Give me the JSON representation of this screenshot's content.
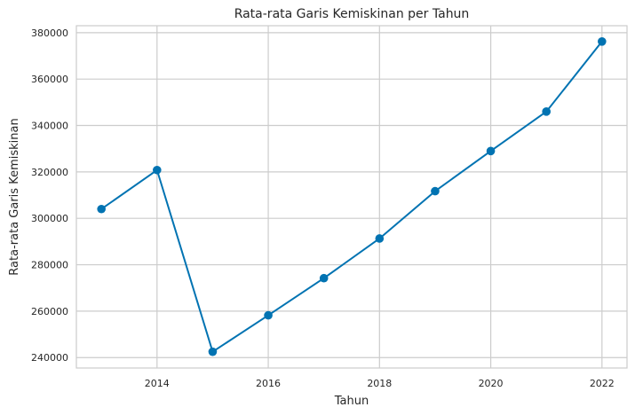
{
  "chart_data": {
    "type": "line",
    "title": "Rata-rata Garis Kemiskinan per Tahun",
    "xlabel": "Tahun",
    "ylabel": "Rata-rata Garis Kemiskinan",
    "x": [
      2013,
      2014,
      2015,
      2016,
      2017,
      2018,
      2019,
      2020,
      2021,
      2022
    ],
    "series": [
      {
        "values": [
          304000,
          320800,
          242500,
          258200,
          274200,
          291300,
          311700,
          329000,
          346000,
          376200
        ],
        "color": "#0173b2"
      }
    ],
    "xlim": [
      2012.55,
      2022.45
    ],
    "ylim": [
      235500,
      383000
    ],
    "xticks": [
      2014,
      2016,
      2018,
      2020,
      2022
    ],
    "xtick_labels": [
      "2014",
      "2016",
      "2018",
      "2020",
      "2022"
    ],
    "yticks": [
      240000,
      260000,
      280000,
      300000,
      320000,
      340000,
      360000,
      380000
    ],
    "ytick_labels": [
      "240000",
      "260000",
      "280000",
      "300000",
      "320000",
      "340000",
      "360000",
      "380000"
    ],
    "grid": true,
    "grid_color": "#cccccc",
    "marker": "circle"
  }
}
